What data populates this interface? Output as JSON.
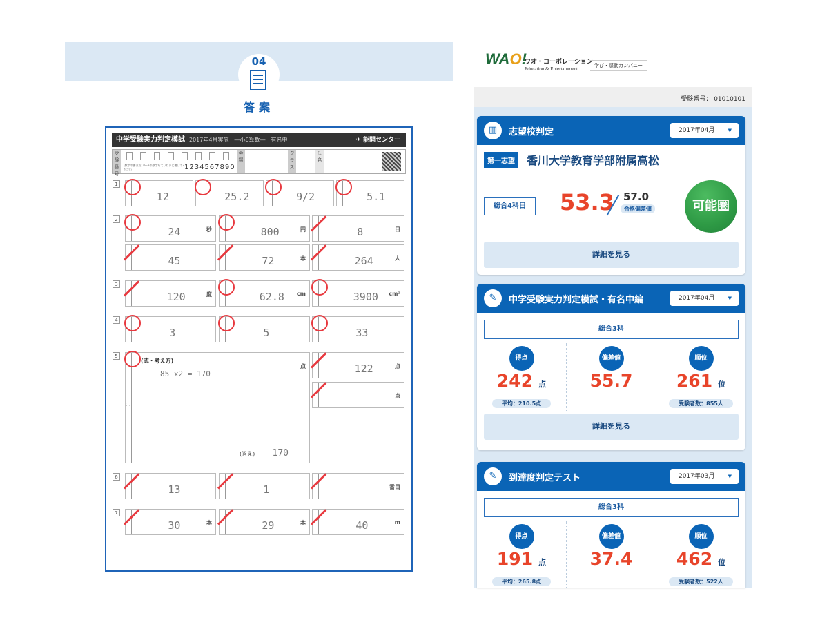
{
  "section": {
    "number": "04",
    "title": "答案",
    "icon": "answer-sheet-icon"
  },
  "sheet": {
    "title": "中学受験実力判定模試",
    "subtitle": "2017年4月実施　―小6算数―　有名中",
    "org": "✈ 能開センター",
    "id_label": "受験番号",
    "id_digits": "1234567890",
    "id_note": "(数字の書き方) 0〜9の数字をていねいに書いてください",
    "field_labels": [
      "会場",
      "クラス",
      "氏名"
    ],
    "questions": [
      {
        "num": "1",
        "answers": [
          {
            "text": "12",
            "unit": "",
            "mark": "correct"
          },
          {
            "text": "25.2",
            "unit": "",
            "mark": "correct"
          },
          {
            "text": "9/2",
            "unit": "",
            "mark": "correct"
          },
          {
            "text": "5.1",
            "unit": "",
            "mark": "correct"
          }
        ]
      },
      {
        "num": "2",
        "answers": [
          {
            "text": "24",
            "unit": "秒",
            "mark": "correct"
          },
          {
            "text": "800",
            "unit": "円",
            "mark": "correct"
          },
          {
            "text": "8",
            "unit": "日",
            "mark": "incorrect"
          },
          {
            "text": "45",
            "unit": "",
            "mark": "incorrect"
          },
          {
            "text": "72",
            "unit": "本",
            "mark": "incorrect"
          },
          {
            "text": "264",
            "unit": "人",
            "mark": "incorrect"
          }
        ]
      },
      {
        "num": "3",
        "answers": [
          {
            "text": "120",
            "unit": "度",
            "mark": "incorrect"
          },
          {
            "text": "62.8",
            "unit": "cm",
            "mark": "correct"
          },
          {
            "text": "3900",
            "unit": "cm²",
            "mark": "correct"
          }
        ]
      },
      {
        "num": "4",
        "answers": [
          {
            "text": "3",
            "unit": "",
            "mark": "correct"
          },
          {
            "text": "5",
            "unit": "",
            "mark": "correct"
          },
          {
            "text": "33",
            "unit": "",
            "mark": "correct"
          }
        ]
      },
      {
        "num": "5",
        "work_label": "(式・考え方)",
        "work": "85 x2 = 170",
        "answer_label": "(答え)",
        "sub_label": "(1)",
        "answers": [
          {
            "text": "170",
            "unit": "点",
            "mark": "correct"
          },
          {
            "text": "122",
            "unit": "点",
            "mark": "incorrect"
          },
          {
            "text": "",
            "unit": "点",
            "mark": "incorrect"
          }
        ]
      },
      {
        "num": "6",
        "answers": [
          {
            "text": "13",
            "unit": "",
            "mark": "incorrect"
          },
          {
            "text": "1",
            "unit": "",
            "mark": "incorrect"
          },
          {
            "text": "",
            "unit": "番目",
            "mark": "incorrect"
          }
        ]
      },
      {
        "num": "7",
        "answers": [
          {
            "text": "30",
            "unit": "本",
            "mark": "incorrect"
          },
          {
            "text": "29",
            "unit": "本",
            "mark": "incorrect"
          },
          {
            "text": "40",
            "unit": "m",
            "mark": "incorrect"
          }
        ]
      }
    ]
  },
  "brand": {
    "logo": "WAO!",
    "name_jp": "ワオ・コーポレーション",
    "name_en": "Education & Entertainment",
    "slogan": "学び・感動カンパニー"
  },
  "exam_number": "受験番号： 01010101",
  "cards": [
    {
      "title": "志望校判定",
      "icon": "school-icon",
      "month": "2017年04月",
      "choice_label": "第一志望",
      "school": "香川大学教育学部附属高松",
      "subject": "総合4科目",
      "score": "53.3",
      "target": "57.0",
      "target_label": "合格偏差値",
      "verdict": "可能圏",
      "detail": "詳細を見る"
    },
    {
      "title": "中学受験実力判定模試・有名中編",
      "icon": "test-result-icon",
      "month": "2017年04月",
      "subject": "総合3科",
      "stats": [
        {
          "label": "得点",
          "value": "242",
          "unit": "点",
          "sub": "平均：210.5点"
        },
        {
          "label": "偏差値",
          "value": "55.7",
          "unit": "",
          "sub": ""
        },
        {
          "label": "順位",
          "value": "261",
          "unit": "位",
          "sub": "受験者数：855人"
        }
      ],
      "detail": "詳細を見る"
    },
    {
      "title": "到達度判定テスト",
      "icon": "test-result-icon",
      "month": "2017年03月",
      "subject": "総合3科",
      "stats": [
        {
          "label": "得点",
          "value": "191",
          "unit": "点",
          "sub": "平均：265.8点"
        },
        {
          "label": "偏差値",
          "value": "37.4",
          "unit": "",
          "sub": ""
        },
        {
          "label": "順位",
          "value": "462",
          "unit": "位",
          "sub": "受験者数：522人"
        }
      ]
    }
  ],
  "colors": {
    "accent": "#0a64b6",
    "score": "#e8442a",
    "correct_mark": "#e8393f",
    "verdict": "#2e9a45",
    "panel_bg": "#dbe8f4"
  }
}
